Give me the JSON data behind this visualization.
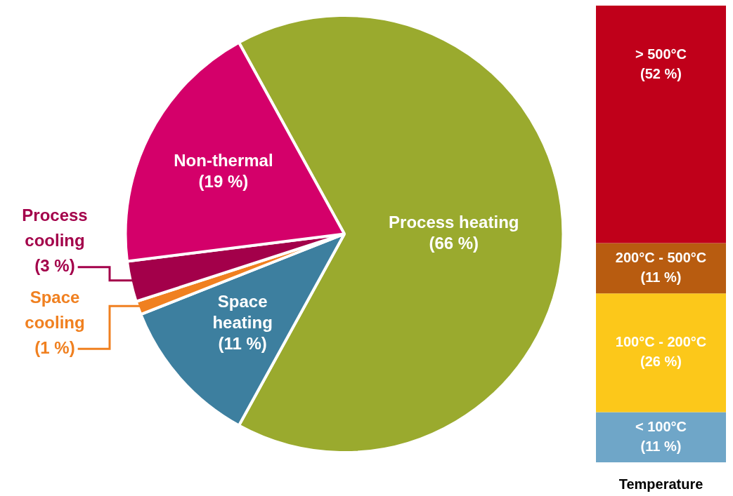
{
  "chart_data": [
    {
      "type": "pie",
      "categories": [
        "Process heating",
        "Space heating",
        "Space cooling",
        "Process cooling",
        "Non-thermal"
      ],
      "values": [
        66,
        11,
        1,
        3,
        19
      ],
      "colors": [
        "#9aaa2e",
        "#3d7f9f",
        "#f08020",
        "#a3004a",
        "#d4006a"
      ],
      "value_labels": [
        "(66 %)",
        "(11 %)",
        "(1 %)",
        "(3 %)",
        "(19 %)"
      ]
    },
    {
      "type": "bar",
      "stacked": true,
      "categories": [
        null
      ],
      "xlabel": "Temperature",
      "series": [
        {
          "name": "< 100°C",
          "color": "#6fa6c8",
          "values": [
            11
          ],
          "value_labels": [
            "(11 %)"
          ]
        },
        {
          "name": "100°C - 200°C",
          "color": "#fcc81a",
          "values": [
            26
          ],
          "value_labels": [
            "(26 %)"
          ]
        },
        {
          "name": "200°C - 500°C",
          "color": "#b85c10",
          "values": [
            11
          ],
          "value_labels": [
            "(11 %)"
          ]
        },
        {
          "name": "> 500°C",
          "color": "#c0001a",
          "values": [
            52
          ],
          "value_labels": [
            "(52 %)"
          ]
        }
      ]
    }
  ]
}
